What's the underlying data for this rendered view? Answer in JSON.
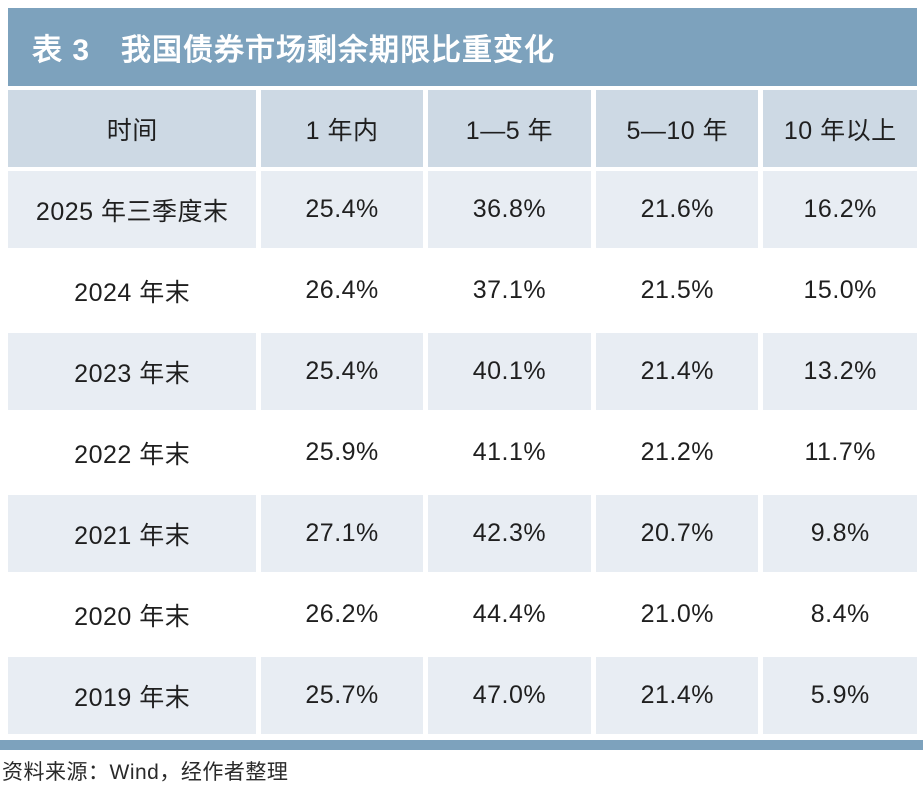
{
  "title": "表 3　我国债券市场剩余期限比重变化",
  "colors": {
    "accent_steel_blue": "#7da2bd",
    "header_row_bg": "#cdd9e4",
    "alt_row_bg": "#e8edf3",
    "body_text": "#1f1f1f",
    "title_text": "#ffffff"
  },
  "table": {
    "headers": [
      "时间",
      "1 年内",
      "1—5 年",
      "5—10 年",
      "10 年以上"
    ],
    "rows": [
      [
        "2025 年三季度末",
        "25.4%",
        "36.8%",
        "21.6%",
        "16.2%"
      ],
      [
        "2024 年末",
        "26.4%",
        "37.1%",
        "21.5%",
        "15.0%"
      ],
      [
        "2023 年末",
        "25.4%",
        "40.1%",
        "21.4%",
        "13.2%"
      ],
      [
        "2022 年末",
        "25.9%",
        "41.1%",
        "21.2%",
        "11.7%"
      ],
      [
        "2021 年末",
        "27.1%",
        "42.3%",
        "20.7%",
        "9.8%"
      ],
      [
        "2020 年末",
        "26.2%",
        "44.4%",
        "21.0%",
        "8.4%"
      ],
      [
        "2019 年末",
        "25.7%",
        "47.0%",
        "21.4%",
        "5.9%"
      ]
    ]
  },
  "footer": {
    "source_note": "资料来源：Wind，经作者整理"
  }
}
